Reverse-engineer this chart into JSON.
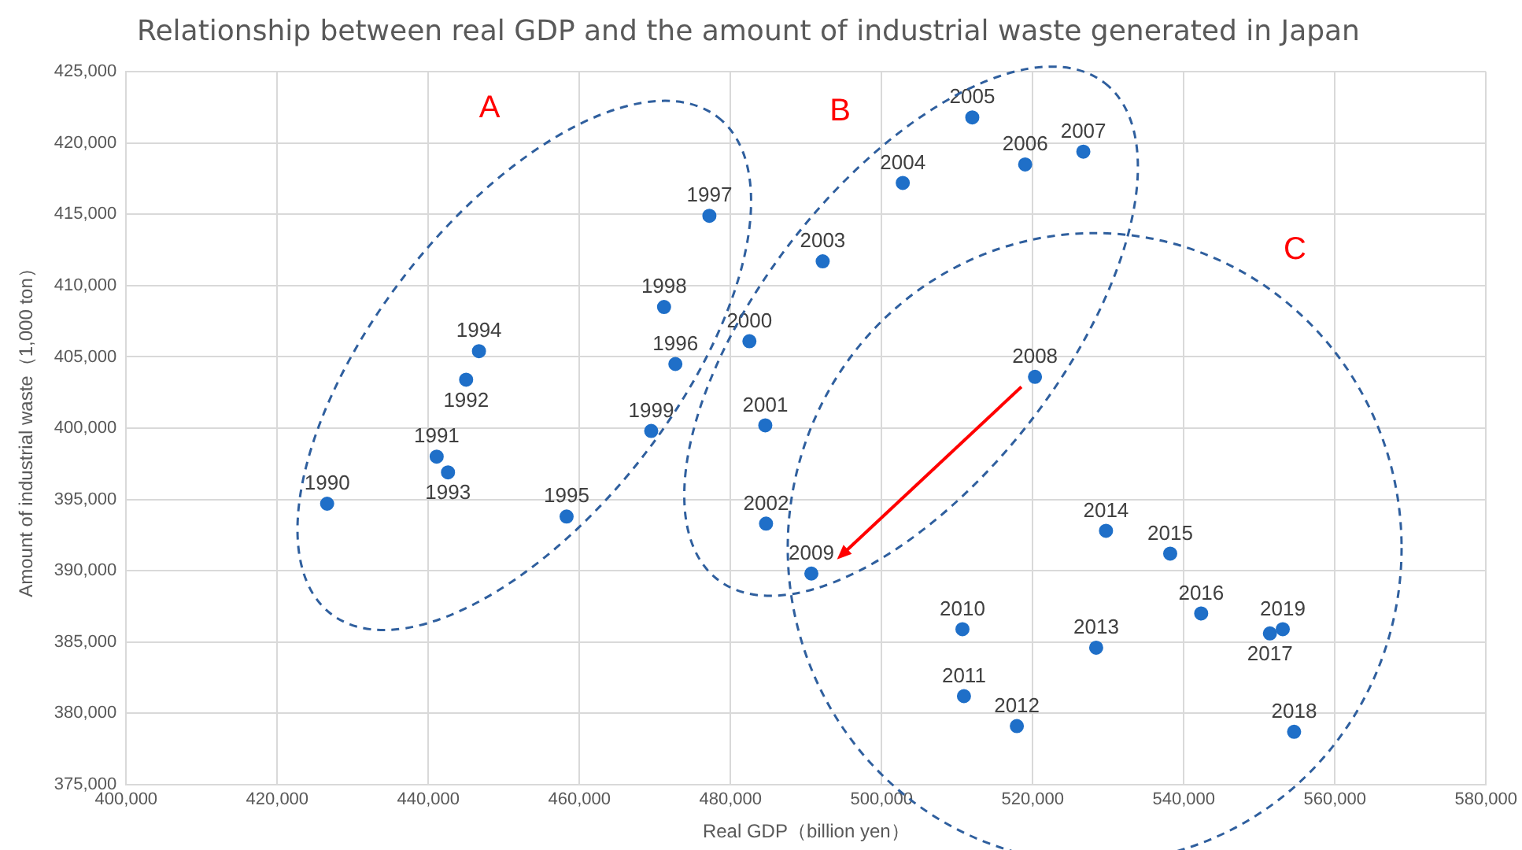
{
  "chart_data": {
    "type": "scatter",
    "title": "Relationship between real GDP and the amount of industrial waste generated in Japan",
    "xlabel": "Real GDP（billion yen）",
    "ylabel": "Amount of industrial waste（1,000 ton）",
    "x": [
      426600,
      441100,
      445000,
      442600,
      446700,
      458300,
      472700,
      477200,
      471200,
      469500,
      482500,
      484600,
      484700,
      492200,
      502800,
      512000,
      519000,
      526700,
      520300,
      490700,
      510700,
      510900,
      517900,
      528400,
      529700,
      538200,
      542300,
      551400,
      554600,
      553100
    ],
    "values": [
      394700,
      398000,
      403400,
      396900,
      405400,
      393800,
      404500,
      414900,
      408500,
      399800,
      406100,
      400200,
      393300,
      411700,
      417200,
      421800,
      418500,
      419400,
      403600,
      389800,
      385900,
      381200,
      379100,
      384600,
      392800,
      391200,
      387000,
      385600,
      378700,
      385900
    ],
    "color": "#1f6fc8",
    "xlim": [
      400000,
      580000
    ],
    "xticks": [
      {
        "value": 400000,
        "label": "400,000"
      },
      {
        "value": 420000,
        "label": "420,000"
      },
      {
        "value": 440000,
        "label": "440,000"
      },
      {
        "value": 460000,
        "label": "460,000"
      },
      {
        "value": 480000,
        "label": "480,000"
      },
      {
        "value": 500000,
        "label": "500,000"
      },
      {
        "value": 520000,
        "label": "520,000"
      },
      {
        "value": 540000,
        "label": "540,000"
      },
      {
        "value": 560000,
        "label": "560,000"
      },
      {
        "value": 580000,
        "label": "580,000"
      }
    ],
    "ylim": [
      375000,
      425000
    ],
    "yticks": [
      {
        "value": 375000,
        "label": "375,000"
      },
      {
        "value": 380000,
        "label": "380,000"
      },
      {
        "value": 385000,
        "label": "385,000"
      },
      {
        "value": 390000,
        "label": "390,000"
      },
      {
        "value": 395000,
        "label": "395,000"
      },
      {
        "value": 400000,
        "label": "400,000"
      },
      {
        "value": 405000,
        "label": "405,000"
      },
      {
        "value": 410000,
        "label": "410,000"
      },
      {
        "value": 415000,
        "label": "415,000"
      },
      {
        "value": 420000,
        "label": "420,000"
      },
      {
        "value": 425000,
        "label": "425,000"
      }
    ],
    "annotations": [
      {
        "text": "1990",
        "x": 426600,
        "y": 394700
      },
      {
        "text": "1991",
        "x": 441100,
        "y": 398000
      },
      {
        "text": "1992",
        "x": 445000,
        "y": 403400
      },
      {
        "text": "1993",
        "x": 442600,
        "y": 396900
      },
      {
        "text": "1994",
        "x": 446700,
        "y": 405400
      },
      {
        "text": "1995",
        "x": 458300,
        "y": 393800
      },
      {
        "text": "1996",
        "x": 472700,
        "y": 404500
      },
      {
        "text": "1997",
        "x": 477200,
        "y": 414900
      },
      {
        "text": "1998",
        "x": 471200,
        "y": 408500
      },
      {
        "text": "1999",
        "x": 469500,
        "y": 399800
      },
      {
        "text": "2000",
        "x": 482500,
        "y": 406100
      },
      {
        "text": "2001",
        "x": 484600,
        "y": 400200
      },
      {
        "text": "2002",
        "x": 484700,
        "y": 393300
      },
      {
        "text": "2003",
        "x": 492200,
        "y": 411700
      },
      {
        "text": "2004",
        "x": 502800,
        "y": 417200
      },
      {
        "text": "2005",
        "x": 512000,
        "y": 421800
      },
      {
        "text": "2006",
        "x": 519000,
        "y": 418500
      },
      {
        "text": "2007",
        "x": 526700,
        "y": 419400
      },
      {
        "text": "2008",
        "x": 520300,
        "y": 403600
      },
      {
        "text": "2009",
        "x": 490700,
        "y": 389800
      },
      {
        "text": "2010",
        "x": 510700,
        "y": 385900
      },
      {
        "text": "2011",
        "x": 510900,
        "y": 381200
      },
      {
        "text": "2012",
        "x": 517900,
        "y": 379100
      },
      {
        "text": "2013",
        "x": 528400,
        "y": 384600
      },
      {
        "text": "2014",
        "x": 529700,
        "y": 392800
      },
      {
        "text": "2015",
        "x": 538200,
        "y": 391200
      },
      {
        "text": "2016",
        "x": 542300,
        "y": 387000
      },
      {
        "text": "2017",
        "x": 551400,
        "y": 385600
      },
      {
        "text": "2018",
        "x": 554600,
        "y": 378700
      },
      {
        "text": "2019",
        "x": 553100,
        "y": 385900
      },
      "A",
      "B",
      "C"
    ],
    "grid": true,
    "legend": false,
    "marker": "circle"
  }
}
